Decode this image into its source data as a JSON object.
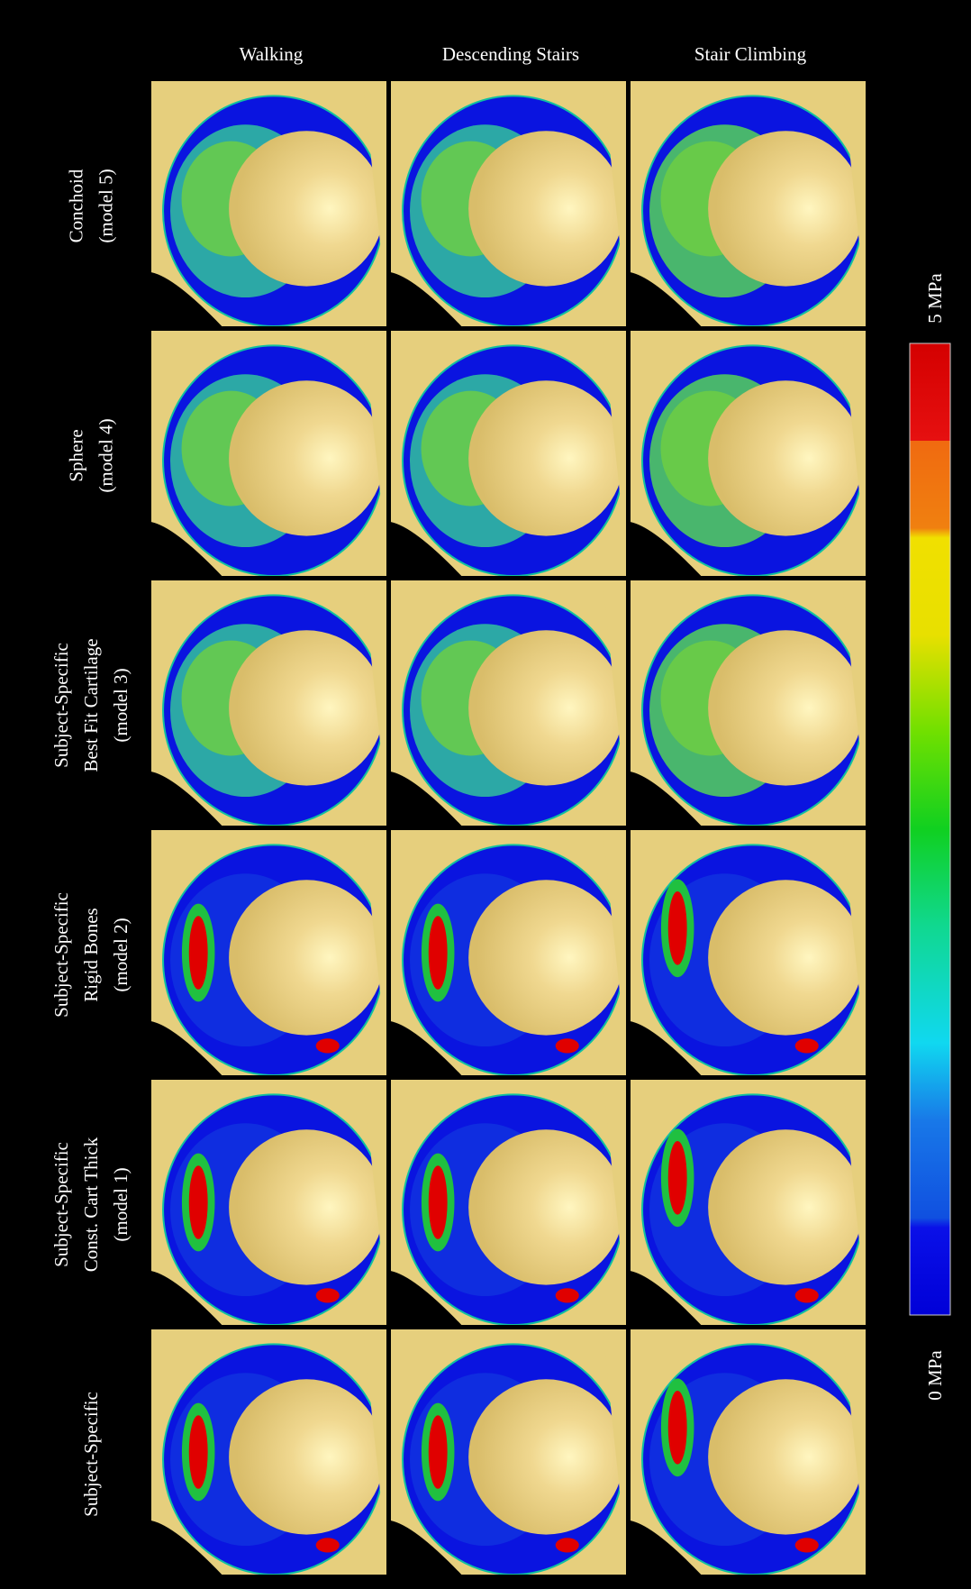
{
  "columns": [
    "Walking",
    "Descending Stairs",
    "Stair Climbing"
  ],
  "rows": [
    {
      "lines": [
        "Conchoid",
        "(model 5)"
      ]
    },
    {
      "lines": [
        "Sphere",
        "(model 4)"
      ]
    },
    {
      "lines": [
        "Subject-Specific",
        "Best Fit Cartilage",
        "(model 3)"
      ]
    },
    {
      "lines": [
        "Subject-Specific",
        "Rigid Bones",
        "(model 2)"
      ]
    },
    {
      "lines": [
        "Subject-Specific",
        "Const. Cart Thick",
        "(model 1)"
      ]
    },
    {
      "lines": [
        "Subject-Specific"
      ]
    }
  ],
  "colorbar": {
    "max_label": "5 MPa",
    "min_label": "0 MPa"
  }
}
